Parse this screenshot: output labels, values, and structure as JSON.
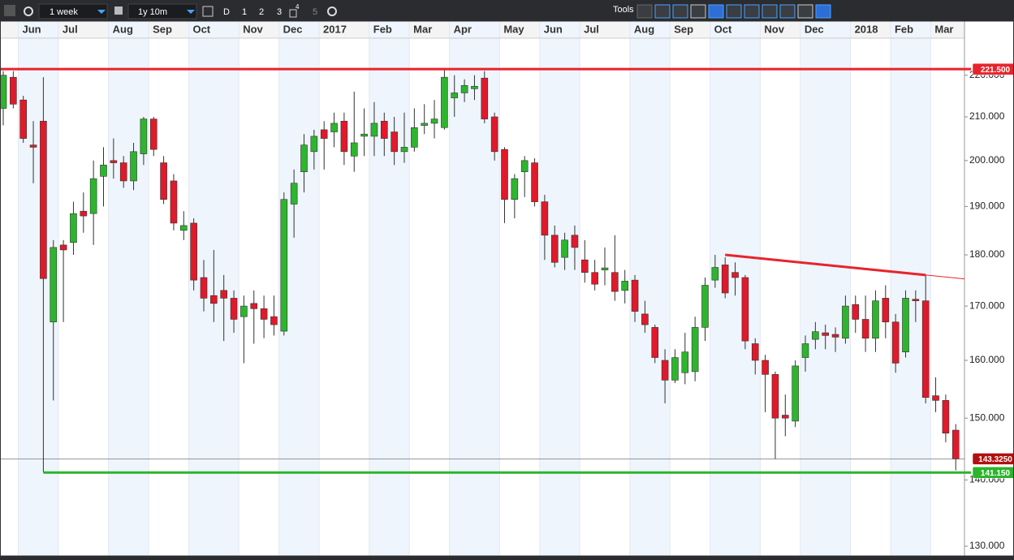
{
  "toolbar": {
    "interval": "1 week",
    "range": "1y 10m",
    "buttons": [
      "D",
      "1",
      "2",
      "3",
      "4",
      "5"
    ],
    "tools": "Tools"
  },
  "chart_data": {
    "type": "candlestick",
    "log_scale": true,
    "categories": [
      null,
      null,
      "Jun",
      null,
      null,
      null,
      "Jul",
      null,
      null,
      null,
      null,
      "Aug",
      null,
      null,
      null,
      "Sep",
      null,
      null,
      null,
      "Oct",
      null,
      null,
      null,
      null,
      "Nov",
      null,
      null,
      null,
      "Dec",
      null,
      null,
      null,
      "2017",
      null,
      null,
      null,
      null,
      "Feb",
      null,
      null,
      null,
      "Mar",
      null,
      null,
      null,
      "Apr",
      null,
      null,
      null,
      null,
      "May",
      null,
      null,
      null,
      "Jun",
      null,
      null,
      null,
      "Jul",
      null,
      null,
      null,
      null,
      "Aug",
      null,
      null,
      null,
      "Sep",
      null,
      null,
      null,
      "Oct",
      null,
      null,
      null,
      null,
      "Nov",
      null,
      null,
      null,
      "Dec",
      null,
      null,
      null,
      null,
      "2018",
      null,
      null,
      null,
      "Feb",
      null,
      null,
      null,
      "Mar",
      null,
      null
    ],
    "open": [
      212,
      219.5,
      214,
      203.5,
      209,
      167,
      182,
      182.5,
      189,
      188.5,
      196.5,
      200,
      199.5,
      195.5,
      201.5,
      209.5,
      199.5,
      195.5,
      185,
      186.5,
      175.5,
      172,
      173,
      171.5,
      168,
      170.5,
      169.5,
      168,
      165.3,
      190.5,
      197.5,
      202,
      207,
      206.5,
      209,
      201,
      205.5,
      205.5,
      209,
      206.5,
      202,
      203,
      208,
      208.5,
      207.5,
      214.5,
      215.7,
      216.7,
      219.3,
      210,
      202.5,
      191.5,
      197.5,
      199.5,
      191,
      184,
      179.5,
      184,
      179,
      176.5,
      177,
      176.5,
      173,
      175,
      168.5,
      166,
      160,
      156.5,
      157.8,
      158,
      166,
      175,
      178,
      176.5,
      175.5,
      163,
      160,
      157.5,
      150.5,
      149.5,
      160.5,
      163.8,
      165,
      164.7,
      164,
      170.3,
      167.5,
      164,
      171.5,
      167,
      161.5,
      171.3,
      171,
      153.8,
      153,
      148
    ],
    "high": [
      221,
      221,
      215,
      209,
      219.5,
      183,
      183,
      191,
      193,
      200,
      203,
      205,
      201,
      204,
      210,
      210,
      201,
      197,
      189,
      187.5,
      179,
      181,
      176,
      173,
      172,
      173,
      172,
      172,
      193,
      198,
      206,
      207,
      209,
      211,
      211,
      216,
      212,
      213.5,
      211,
      210,
      211,
      212,
      213,
      214,
      221.5,
      220,
      219,
      220,
      221,
      211,
      203,
      197,
      201,
      200.5,
      192.5,
      186,
      184.5,
      186,
      183,
      179,
      181.5,
      184,
      177,
      176,
      171,
      166.5,
      162,
      162,
      165,
      168,
      175.5,
      180,
      179.5,
      178.5,
      176,
      164,
      161,
      158,
      154,
      160,
      164.5,
      167,
      166.5,
      166,
      172,
      172,
      172,
      173,
      174,
      168.5,
      173,
      173,
      176,
      157,
      154,
      149
    ],
    "low": [
      208,
      212,
      204,
      195,
      141.15,
      153,
      167,
      180,
      184.5,
      182,
      190,
      196,
      194,
      193.5,
      199,
      201,
      190.5,
      185,
      183,
      173,
      169,
      167,
      163.5,
      165,
      159.5,
      163,
      164,
      164.5,
      164.5,
      183.5,
      193,
      198,
      198,
      203,
      199,
      197.5,
      201,
      201,
      201,
      199,
      199.5,
      202,
      206,
      205,
      207,
      210,
      213.5,
      214,
      208.5,
      200,
      186.5,
      187.5,
      192,
      190,
      179,
      177.5,
      177,
      177,
      174.5,
      173,
      174,
      171,
      170.5,
      167,
      165,
      159.5,
      152.5,
      156,
      155.8,
      156.3,
      163.5,
      173.5,
      171.5,
      172,
      162,
      157.5,
      151,
      143.3,
      147,
      148.5,
      158,
      162,
      162,
      161.5,
      163,
      165,
      161.5,
      161.5,
      164,
      157.8,
      160.5,
      167,
      152.5,
      151,
      146,
      141.5
    ],
    "close": [
      220,
      213,
      205,
      203,
      175.3,
      181.5,
      181,
      188.5,
      188,
      196,
      199,
      199.5,
      195.5,
      202,
      209.5,
      202.5,
      191.5,
      186.5,
      186,
      175,
      171.5,
      170.5,
      171.5,
      167.5,
      170,
      169.5,
      167.5,
      166.5,
      191.5,
      195,
      203.5,
      205.5,
      205,
      208.5,
      202,
      204,
      206,
      208.5,
      205,
      202,
      203,
      207.5,
      208.5,
      209.5,
      219.5,
      215.7,
      217.5,
      217.3,
      209.5,
      202,
      191.5,
      196,
      200,
      191,
      184,
      178.5,
      183,
      181.5,
      176.5,
      174.2,
      177.4,
      172.8,
      174.8,
      169,
      166.5,
      160.5,
      156.5,
      160.5,
      161.5,
      166,
      174,
      177.5,
      172.5,
      175.5,
      163.5,
      160,
      157.5,
      150,
      150,
      159,
      163,
      165.2,
      164.5,
      164.2,
      170,
      167.5,
      164,
      171,
      167,
      159.5,
      171.5,
      171,
      153.5,
      153,
      147.5,
      143.325
    ],
    "up_color": "#2db52d",
    "down_color": "#e0192b",
    "ylim": [
      128.6,
      229.3
    ],
    "yticks": [
      {
        "value": 130,
        "label": "130.000"
      },
      {
        "value": 140,
        "label": "140.000"
      },
      {
        "value": 150,
        "label": "150.000"
      },
      {
        "value": 160,
        "label": "160.000"
      },
      {
        "value": 170,
        "label": "170.000"
      },
      {
        "value": 180,
        "label": "180.000"
      },
      {
        "value": 190,
        "label": "190.000"
      },
      {
        "value": 200,
        "label": "200.000"
      },
      {
        "value": 210,
        "label": "210.000"
      },
      {
        "value": 220,
        "label": "220.000"
      }
    ],
    "levels": [
      {
        "value": 221.5,
        "label": "221.500",
        "color": "#e8232b"
      },
      {
        "value": 141.15,
        "label": "141.150",
        "color": "#2bb52b"
      }
    ],
    "last_price": {
      "value": 143.325,
      "label": "143.3250",
      "color": "#b01010"
    },
    "trendline": {
      "start_category": 72,
      "end_category": 92,
      "values": [
        180,
        176
      ],
      "color": "#e8232b"
    }
  }
}
